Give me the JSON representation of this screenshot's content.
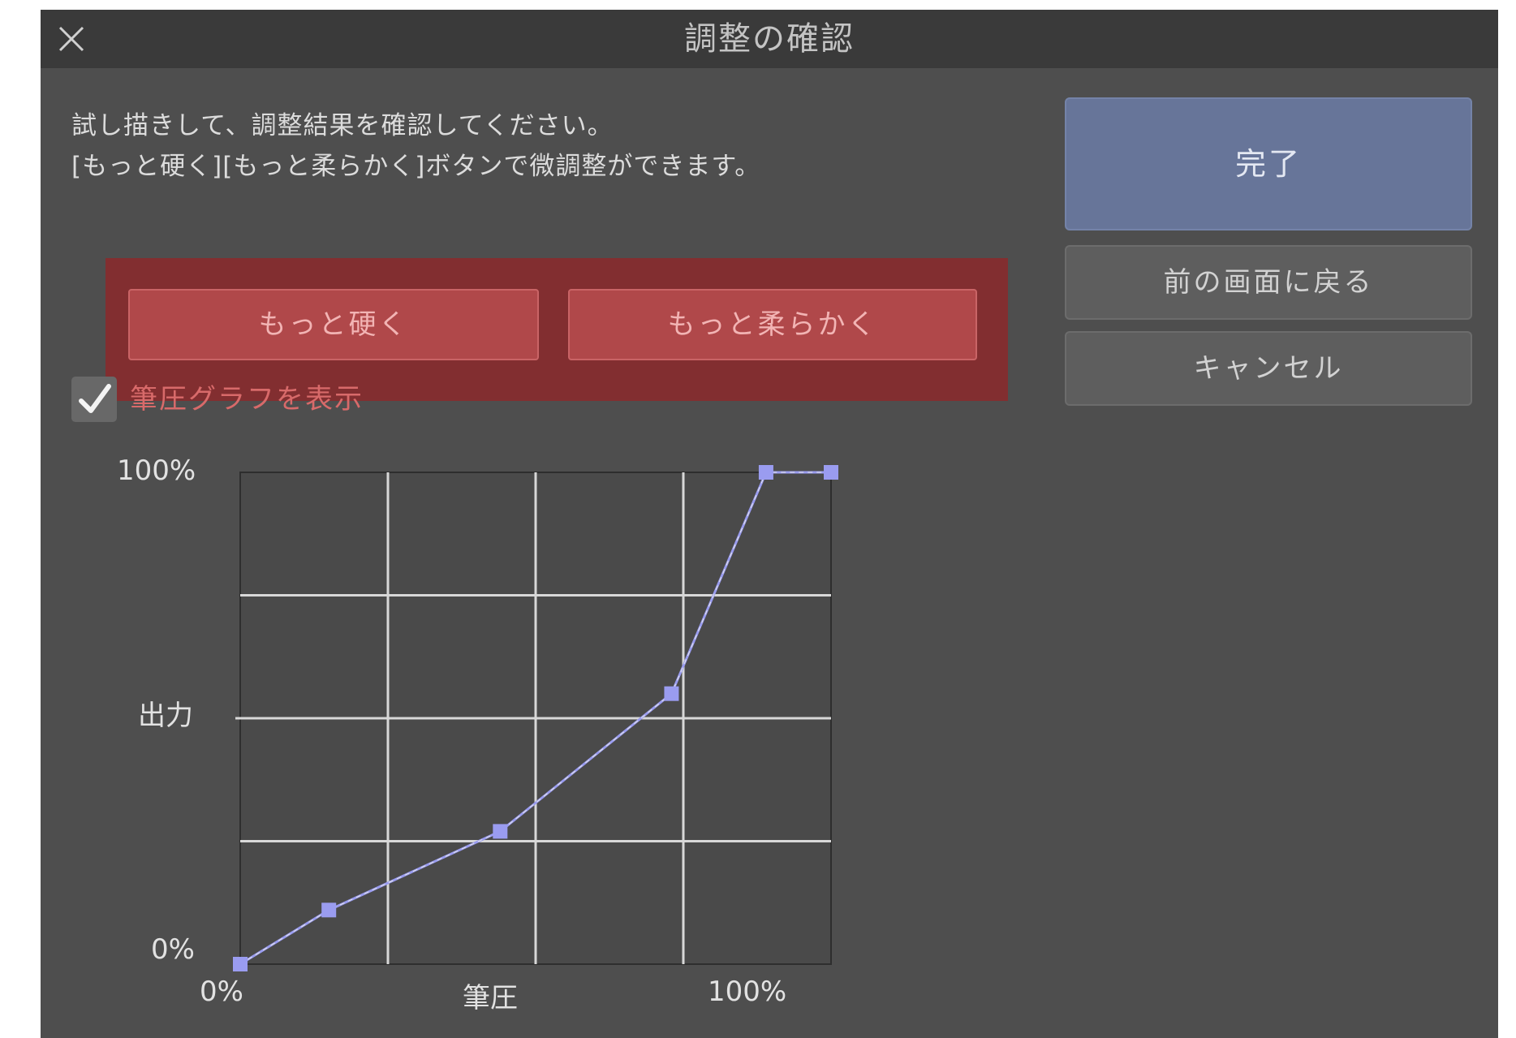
{
  "window": {
    "title": "調整の確認",
    "close_icon": "close-icon"
  },
  "instructions": {
    "line1": "試し描きして、調整結果を確認してください。",
    "line2": "[もっと硬く][もっと柔らかく]ボタンで微調整ができます。"
  },
  "adjust": {
    "harder_label": "もっと硬く",
    "softer_label": "もっと柔らかく"
  },
  "checkbox": {
    "label": "筆圧グラフを表示",
    "checked": true,
    "icon": "checkmark-icon"
  },
  "side_buttons": {
    "done_label": "完了",
    "back_label": "前の画面に戻る",
    "cancel_label": "キャンセル"
  },
  "graph": {
    "y_top_label": "100%",
    "y_mid_label": "出力",
    "y_bottom_label": "0%",
    "x_left_label": "0%",
    "x_mid_label": "筆圧",
    "x_right_label": "100%",
    "control_points": [
      {
        "pressure": 0,
        "output": 0
      },
      {
        "pressure": 15,
        "output": 11
      },
      {
        "pressure": 44,
        "output": 27
      },
      {
        "pressure": 73,
        "output": 55
      },
      {
        "pressure": 89,
        "output": 100
      },
      {
        "pressure": 100,
        "output": 100
      }
    ],
    "colors": {
      "curve": "#9a9cf0",
      "point": "#9a9cf0",
      "grid": "#d8d8d8",
      "plot_bg": "#4a4a4a"
    }
  },
  "colors": {
    "dialog_bg": "#4e4e4e",
    "titlebar_bg": "#3a3a3a",
    "highlight": "#822e30",
    "adjust_button": "#b0484a",
    "done_button": "#677599"
  }
}
